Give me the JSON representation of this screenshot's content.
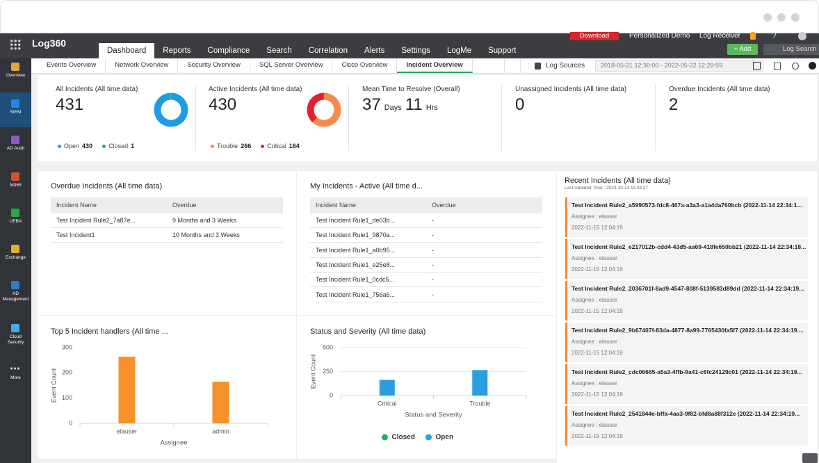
{
  "header": {
    "logo": "Log360",
    "tabs": [
      "Dashboard",
      "Reports",
      "Compliance",
      "Search",
      "Correlation",
      "Alerts",
      "Settings",
      "LogMe",
      "Support"
    ],
    "active_tab": 0,
    "download": "Download",
    "personalized_demo": "Personalized Demo",
    "log_receiver": "Log Receiver",
    "help": "?",
    "add": "+ Add",
    "log_search": "Log Search"
  },
  "sidebar": {
    "items": [
      "Overview",
      "SIEM",
      "AD Audit",
      "M365",
      "UEBA",
      "Exchange",
      "AD Management",
      "Cloud Security",
      "More"
    ],
    "active_item": 1
  },
  "subtabs": {
    "tabs": [
      "Events Overview",
      "Network Overview",
      "Security Overview",
      "SQL Server Overview",
      "Cisco Overview",
      "Incident Overview"
    ],
    "active_tab": 5,
    "log_sources": "Log Sources",
    "date_range": "2018-05-21 12:30:00 - 2022-05-22 12:29:59"
  },
  "kpis": [
    {
      "title": "All Incidents (All time data)",
      "value": "431",
      "legend": [
        {
          "label": "Open",
          "value": 430,
          "color": "#1e9ee2"
        },
        {
          "label": "Closed",
          "value": 1,
          "color": "#27ae60"
        }
      ]
    },
    {
      "title": "Active Incidents (All time data)",
      "value": "430",
      "legend": [
        {
          "label": "Trouble",
          "value": 266,
          "color": "#f58a4b"
        },
        {
          "label": "Critical",
          "value": 164,
          "color": "#e5202e"
        }
      ]
    },
    {
      "title": "Mean Time to Resolve (Overall)",
      "parts": [
        "37",
        "Days",
        "11",
        "Hrs"
      ]
    },
    {
      "title": "Unassigned Incidents (All time data)",
      "value": "0"
    },
    {
      "title": "Overdue Incidents (All time data)",
      "value": "2"
    }
  ],
  "overdue_incidents": {
    "title": "Overdue Incidents (All time data)",
    "columns": [
      "Incident Name",
      "Overdue"
    ],
    "rows": [
      [
        "Test Incident Rule2_7a87e...",
        "9 Months and 3 Weeks"
      ],
      [
        "Test Incident1",
        "10 Months and 3 Weeks"
      ]
    ]
  },
  "my_incidents": {
    "title": "My Incidents - Active (All time d...",
    "columns": [
      "Incident Name",
      "Overdue"
    ],
    "rows": [
      [
        "Test Incident Rule1_de03b...",
        "-"
      ],
      [
        "Test Incident Rule1_9870a...",
        "-"
      ],
      [
        "Test Incident Rule1_a0b95...",
        "-"
      ],
      [
        "Test Incident Rule1_e25e8...",
        "-"
      ],
      [
        "Test Incident Rule1_0cdc5...",
        "-"
      ],
      [
        "Test Incident Rule1_756a6...",
        "-"
      ]
    ]
  },
  "recent_incidents": {
    "title": "Recent Incidents (All time data)",
    "last_updated": "Last Updated Time : 2023-10-13 11:43:27",
    "items": [
      {
        "title": "Test Incident Rule2_a5990573-fdc8-467a-a3a3-a1a4da760bcb (2022-11-14 22:34:1...",
        "assignee": "Assignee : elauser",
        "time": "2022-11-15 12:04:19"
      },
      {
        "title": "Test Incident Rule2_e217012b-cdd4-43d5-aa69-418fe650bb21 (2022-11-14 22:34:18...",
        "assignee": "Assignee : elauser",
        "time": "2022-11-15 12:04:19"
      },
      {
        "title": "Test Incident Rule2_2036701f-8ad9-4547-808f-5139583d89dd (2022-11-14 22:34:19...",
        "assignee": "Assignee : elauser",
        "time": "2022-11-15 12:04:19"
      },
      {
        "title": "Test Incident Rule2_9b67407f-83da-4877-8a99-7765430fa5f7 (2022-11-14 22:34:19....",
        "assignee": "Assignee : elauser",
        "time": "2022-11-15 12:04:19"
      },
      {
        "title": "Test Incident Rule2_cdc06665-a5a3-4ffb-9a41-c6fc24129c01 (2022-11-14 22:34:19...",
        "assignee": "Assignee : elauser",
        "time": "2022-11-15 12:04:19"
      },
      {
        "title": "Test Incident Rule2_2541844e-bffa-4aa3-9f82-bfd8a88f312e (2022-11-14 22:34:19...",
        "assignee": "Assignee : elauser",
        "time": "2022-11-15 12:04:19"
      }
    ]
  },
  "chart_data": [
    {
      "type": "bar",
      "title": "Top 5 Incident handlers (All time ...",
      "categories": [
        "elauser",
        "admin"
      ],
      "values": [
        264,
        165
      ],
      "color": "#f7922a",
      "ylim": [
        0,
        300
      ],
      "yticks": [
        0,
        100,
        200,
        300
      ],
      "xlabel": "Assignee",
      "ylabel": "Event Count",
      "grid": false
    },
    {
      "type": "stacked_bar",
      "title": "Status and Severity (All time data)",
      "categories": [
        "Critical",
        "Trouble"
      ],
      "series": [
        {
          "name": "Closed",
          "color": "#27ae60",
          "values": [
            0,
            0
          ]
        },
        {
          "name": "Open",
          "color": "#2a9fe0",
          "values": [
            164,
            266
          ]
        }
      ],
      "ylim": [
        0,
        500
      ],
      "yticks": [
        0,
        250,
        500
      ],
      "xlabel": "Status and Severity",
      "ylabel": "Event Count",
      "grid": true,
      "legend": "bottom"
    }
  ]
}
